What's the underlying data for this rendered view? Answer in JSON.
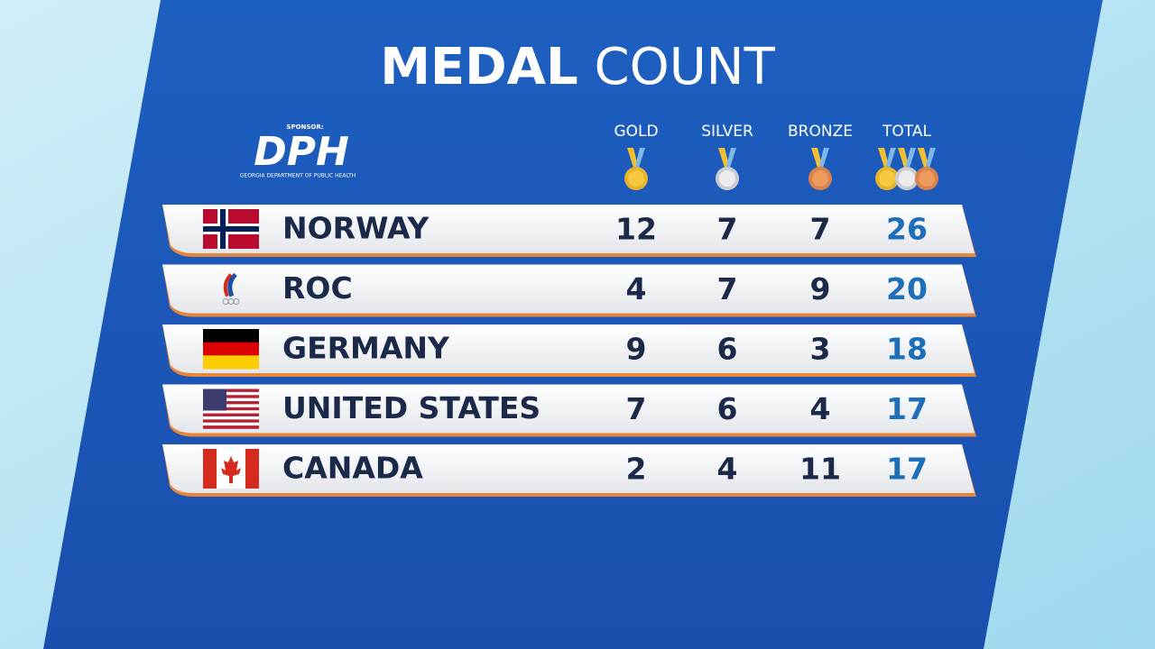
{
  "header": {
    "title_bold": "MEDAL",
    "title_light": "COUNT"
  },
  "sponsor": {
    "label": "SPONSOR:",
    "logo": "DPH",
    "name": "GEORGIA DEPARTMENT OF PUBLIC HEALTH"
  },
  "table": {
    "columns": [
      "GOLD",
      "SILVER",
      "BRONZE",
      "TOTAL"
    ],
    "rows": [
      [
        "NORWAY",
        12,
        7,
        7,
        26
      ],
      [
        "ROC",
        4,
        7,
        9,
        20
      ],
      [
        "GERMANY",
        9,
        6,
        3,
        18
      ],
      [
        "UNITED STATES",
        7,
        6,
        4,
        17
      ],
      [
        "CANADA",
        2,
        4,
        11,
        17
      ]
    ]
  }
}
